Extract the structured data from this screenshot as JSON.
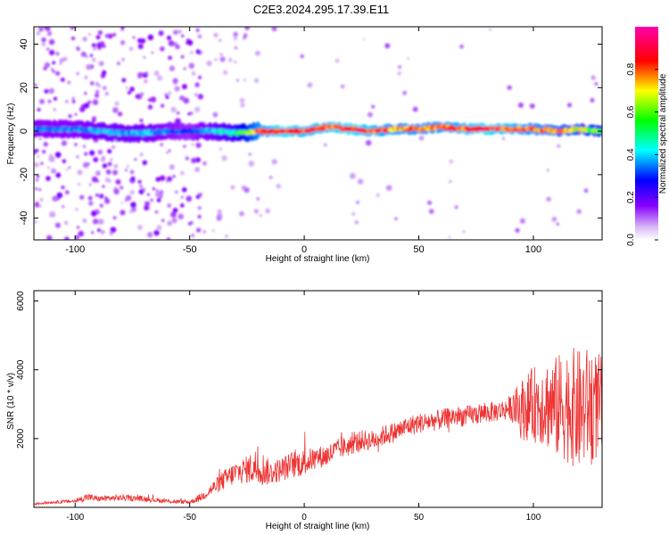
{
  "title": "C2E3.2024.295.17.39.E11",
  "chart_data": [
    {
      "type": "heatmap",
      "xlabel": "Height of straight line (km)",
      "ylabel": "Frequency (Hz)",
      "xlim": [
        -118,
        130
      ],
      "ylim": [
        -50,
        48
      ],
      "x_ticks": [
        -100,
        -50,
        0,
        50,
        100
      ],
      "y_ticks": [
        -40,
        -20,
        0,
        20,
        40
      ],
      "colorbar": {
        "label": "Normalized spectral amplitude",
        "range": [
          0,
          1
        ],
        "ticks": [
          0.0,
          0.2,
          0.4,
          0.6,
          0.8
        ],
        "colors": [
          "#ffffff",
          "#d9b8f5",
          "#8800ff",
          "#0000ff",
          "#00ffff",
          "#00ff00",
          "#ffff00",
          "#ff0000",
          "#ff00aa"
        ]
      },
      "trace": {
        "x": [
          -100,
          -90,
          -80,
          -70,
          -60,
          -50,
          -40,
          -30,
          -20,
          -10,
          0,
          10,
          20,
          30,
          40,
          50,
          60,
          70,
          80,
          90,
          100,
          110,
          120,
          128
        ],
        "y": [
          1,
          0,
          -1,
          -1,
          0,
          0,
          0,
          -1,
          0,
          0,
          0,
          2,
          1,
          0,
          1,
          1,
          2,
          1,
          1,
          1,
          1,
          0,
          1,
          0
        ],
        "amplitude": [
          0.35,
          0.4,
          0.4,
          0.4,
          0.35,
          0.3,
          0.4,
          0.5,
          0.8,
          0.9,
          0.85,
          0.85,
          0.9,
          0.85,
          0.8,
          0.8,
          0.8,
          0.85,
          0.9,
          0.85,
          0.8,
          0.75,
          0.7,
          0.6
        ]
      }
    },
    {
      "type": "line",
      "xlabel": "Height of straight line (km)",
      "ylabel": "SNR (10 * v/v)",
      "xlim": [
        -118,
        130
      ],
      "ylim": [
        0,
        6300
      ],
      "x_ticks": [
        -100,
        -50,
        0,
        50,
        100
      ],
      "y_ticks": [
        2000,
        4000,
        6000
      ],
      "color": "#ee3333",
      "series": [
        {
          "x": [
            -118,
            -110,
            -100,
            -95,
            -90,
            -80,
            -70,
            -60,
            -50,
            -45,
            -40,
            -35,
            -30,
            -25,
            -20,
            -15,
            -10,
            -5,
            0,
            5,
            10,
            15,
            20,
            25,
            30,
            35,
            40,
            45,
            50,
            55,
            60,
            65,
            70,
            75,
            80,
            85,
            90,
            95,
            100,
            105,
            110,
            115,
            120,
            125,
            130
          ],
          "y": [
            100,
            150,
            180,
            300,
            250,
            280,
            250,
            180,
            150,
            300,
            550,
            800,
            1000,
            1100,
            1200,
            1000,
            1100,
            1250,
            1300,
            1450,
            1500,
            1700,
            1800,
            1950,
            1950,
            2100,
            2200,
            2350,
            2450,
            2500,
            2550,
            2650,
            2650,
            2700,
            2750,
            2800,
            2900,
            2850,
            3000,
            3050,
            2900,
            3000,
            2800,
            3000,
            2900
          ],
          "noise": [
            40,
            40,
            60,
            120,
            80,
            90,
            80,
            60,
            60,
            120,
            200,
            300,
            350,
            400,
            600,
            350,
            350,
            400,
            400,
            300,
            350,
            300,
            300,
            300,
            300,
            300,
            300,
            300,
            300,
            300,
            300,
            300,
            300,
            300,
            300,
            300,
            350,
            900,
            1100,
            1300,
            1500,
            1700,
            1800,
            1700,
            1500
          ]
        }
      ]
    }
  ]
}
